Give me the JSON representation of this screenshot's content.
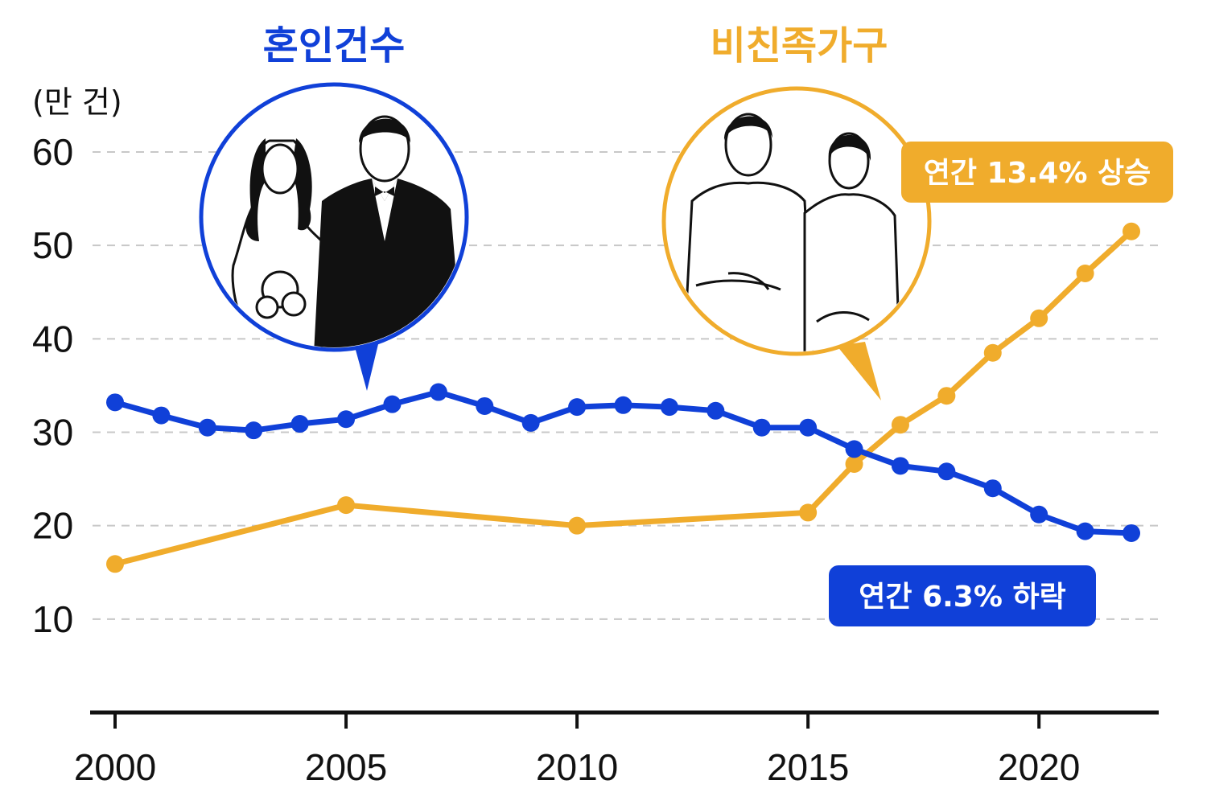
{
  "chart_data": {
    "type": "line",
    "unit_label": "(만 건)",
    "ylim": [
      0,
      60
    ],
    "yticks": [
      10,
      20,
      30,
      40,
      50,
      60
    ],
    "xlim": [
      2000,
      2022
    ],
    "xticks": [
      2000,
      2005,
      2010,
      2015,
      2020
    ],
    "grid": true,
    "series": [
      {
        "name": "혼인건수",
        "color": "#1040d8",
        "x": [
          2000,
          2001,
          2002,
          2003,
          2004,
          2005,
          2006,
          2007,
          2008,
          2009,
          2010,
          2011,
          2012,
          2013,
          2014,
          2015,
          2016,
          2017,
          2018,
          2019,
          2020,
          2021,
          2022
        ],
        "values": [
          33.2,
          31.8,
          30.5,
          30.2,
          30.9,
          31.4,
          33.0,
          34.3,
          32.8,
          31.0,
          32.7,
          32.9,
          32.7,
          32.3,
          30.5,
          30.5,
          28.2,
          26.4,
          25.8,
          24.0,
          21.2,
          19.4,
          19.2
        ],
        "annotation": "연간 6.3% 하락",
        "icon": "wedding-couple-illustration"
      },
      {
        "name": "비친족가구",
        "color": "#f0ac2c",
        "x": [
          2000,
          2005,
          2010,
          2015,
          2016,
          2017,
          2018,
          2019,
          2020,
          2021,
          2022
        ],
        "values": [
          15.9,
          22.2,
          20.0,
          21.4,
          26.6,
          30.8,
          33.9,
          38.5,
          42.2,
          47.0,
          51.5
        ],
        "annotation": "연간 13.4% 상승",
        "icon": "cohabiting-couple-illustration"
      }
    ]
  }
}
